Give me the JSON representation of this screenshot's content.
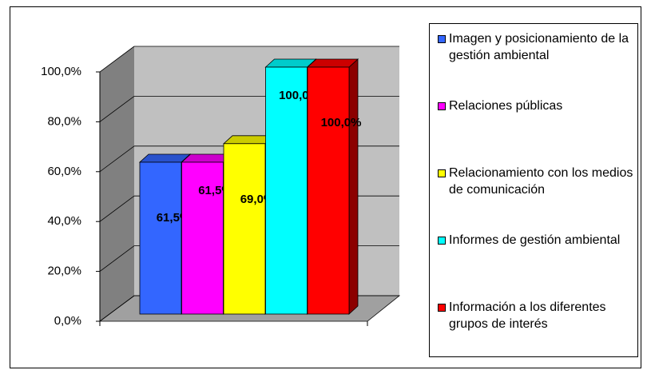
{
  "chart_data": {
    "type": "bar3d",
    "categories": [
      null
    ],
    "series": [
      {
        "name": "Imagen y posicionamiento de la gestión ambiental",
        "color": "#3366ff",
        "values": [
          61.5
        ],
        "value_labels": [
          "61,5%"
        ]
      },
      {
        "name": "Relaciones públicas",
        "color": "#ff00ff",
        "values": [
          61.5
        ],
        "value_labels": [
          "61,5%"
        ]
      },
      {
        "name": "Relacionamiento con los medios de comunicación",
        "color": "#ffff00",
        "values": [
          69
        ],
        "value_labels": [
          "69,0%"
        ]
      },
      {
        "name": "Informes de gestión ambiental",
        "color": "#00ffff",
        "values": [
          100
        ],
        "value_labels": [
          "100,0%"
        ]
      },
      {
        "name": "Información a los diferentes grupos de interés",
        "color": "#ff0000",
        "values": [
          100
        ],
        "value_labels": [
          "100,0%"
        ]
      }
    ],
    "ylim": [
      0,
      100
    ],
    "yticks": [
      {
        "value": 0,
        "label": "0,0%"
      },
      {
        "value": 20,
        "label": "20,0%"
      },
      {
        "value": 40,
        "label": "40,0%"
      },
      {
        "value": 60,
        "label": "60,0%"
      },
      {
        "value": 80,
        "label": "80,0%"
      },
      {
        "value": 100,
        "label": "100,0%"
      }
    ],
    "grid": true,
    "legend": "right"
  }
}
